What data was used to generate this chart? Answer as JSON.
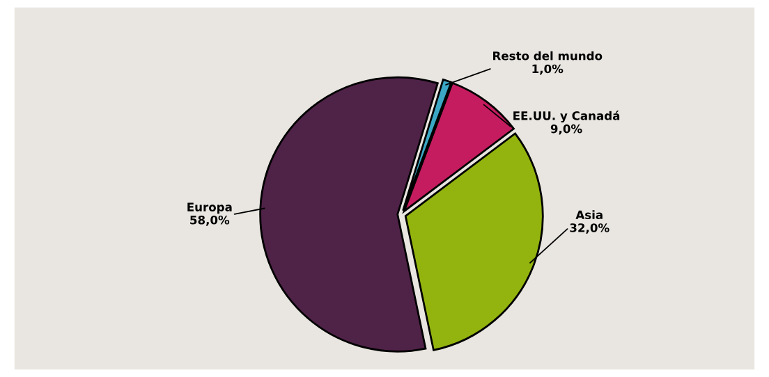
{
  "chart_data": {
    "type": "pie",
    "categories": [
      "Resto del mundo",
      "EE.UU. y Canadá",
      "Asia",
      "Europa"
    ],
    "values": [
      1,
      9,
      32,
      58
    ],
    "colors": [
      "#3ba7c4",
      "#c41c5f",
      "#93b40f",
      "#4f2248"
    ],
    "value_labels": [
      "1,0%",
      "9,0%",
      "32,0%",
      "58,0%"
    ]
  }
}
